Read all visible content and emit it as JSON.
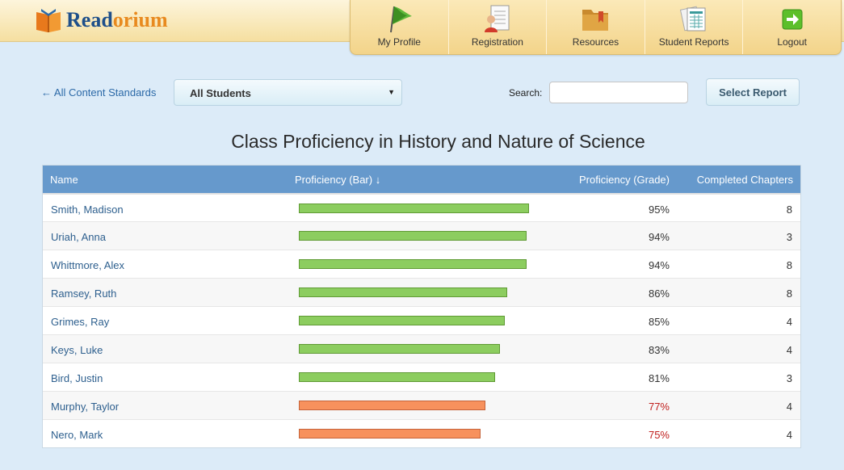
{
  "brand": {
    "read": "Read",
    "orium": "orium"
  },
  "nav": [
    {
      "id": "my-profile",
      "label": "My Profile",
      "icon": "flag-icon"
    },
    {
      "id": "registration",
      "label": "Registration",
      "icon": "clipboard-user-icon"
    },
    {
      "id": "resources",
      "label": "Resources",
      "icon": "folder-icon"
    },
    {
      "id": "student-reports",
      "label": "Student Reports",
      "icon": "report-sheets-icon"
    },
    {
      "id": "logout",
      "label": "Logout",
      "icon": "arrow-right-icon"
    }
  ],
  "controls": {
    "back_link": "← All Content Standards",
    "student_filter": "All Students",
    "search_label": "Search:",
    "search_value": "",
    "select_report": "Select Report"
  },
  "title": "Class Proficiency in History and Nature of Science",
  "table": {
    "headers": {
      "name": "Name",
      "bar": "Proficiency (Bar) ↓",
      "grade": "Proficiency (Grade)",
      "chapters": "Completed Chapters"
    },
    "rows": [
      {
        "name": "Smith, Madison",
        "proficiency": 95,
        "grade": "95%",
        "chapters": "8"
      },
      {
        "name": "Uriah, Anna",
        "proficiency": 94,
        "grade": "94%",
        "chapters": "3"
      },
      {
        "name": "Whittmore, Alex",
        "proficiency": 94,
        "grade": "94%",
        "chapters": "8"
      },
      {
        "name": "Ramsey, Ruth",
        "proficiency": 86,
        "grade": "86%",
        "chapters": "8"
      },
      {
        "name": "Grimes, Ray",
        "proficiency": 85,
        "grade": "85%",
        "chapters": "4"
      },
      {
        "name": "Keys, Luke",
        "proficiency": 83,
        "grade": "83%",
        "chapters": "4"
      },
      {
        "name": "Bird, Justin",
        "proficiency": 81,
        "grade": "81%",
        "chapters": "3"
      },
      {
        "name": "Murphy, Taylor",
        "proficiency": 77,
        "grade": "77%",
        "chapters": "4"
      },
      {
        "name": "Nero, Mark",
        "proficiency": 75,
        "grade": "75%",
        "chapters": "4"
      }
    ],
    "low_threshold": 80,
    "colors": {
      "good": "#8ccd5f",
      "low": "#f7915d",
      "low_text": "#c0201e",
      "header": "#6699cc"
    }
  }
}
